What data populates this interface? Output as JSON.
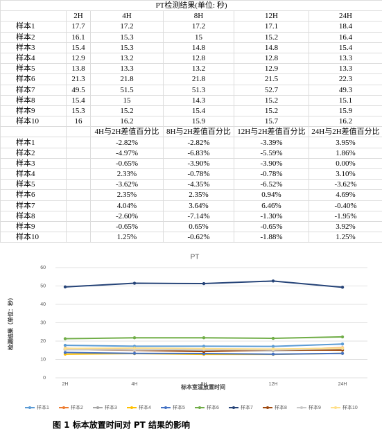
{
  "table": {
    "title": "PT检测结果(单位: 秒)",
    "header": [
      "2H",
      "4H",
      "8H",
      "12H",
      "24H"
    ],
    "rows": [
      {
        "label": "样本1",
        "values": [
          "17.7",
          "17.2",
          "17.2",
          "17.1",
          "18.4"
        ]
      },
      {
        "label": "样本2",
        "values": [
          "16.1",
          "15.3",
          "15",
          "15.2",
          "16.4"
        ]
      },
      {
        "label": "样本3",
        "values": [
          "15.4",
          "15.3",
          "14.8",
          "14.8",
          "15.4"
        ]
      },
      {
        "label": "样本4",
        "values": [
          "12.9",
          "13.2",
          "12.8",
          "12.8",
          "13.3"
        ]
      },
      {
        "label": "样本5",
        "values": [
          "13.8",
          "13.3",
          "13.2",
          "12.9",
          "13.3"
        ]
      },
      {
        "label": "样本6",
        "values": [
          "21.3",
          "21.8",
          "21.8",
          "21.5",
          "22.3"
        ]
      },
      {
        "label": "样本7",
        "values": [
          "49.5",
          "51.5",
          "51.3",
          "52.7",
          "49.3"
        ]
      },
      {
        "label": "样本8",
        "values": [
          "15.4",
          "15",
          "14.3",
          "15.2",
          "15.1"
        ]
      },
      {
        "label": "样本9",
        "values": [
          "15.3",
          "15.2",
          "15.4",
          "15.2",
          "15.9"
        ]
      },
      {
        "label": "样本10",
        "values": [
          "16",
          "16.2",
          "15.9",
          "15.7",
          "16.2"
        ]
      }
    ],
    "header2": [
      "4H与2H差值百分比",
      "8H与2H差值百分比",
      "12H与2H差值百分比",
      "24H与2H差值百分比"
    ],
    "rows2": [
      {
        "label": "样本1",
        "values": [
          "-2.82%",
          "-2.82%",
          "-3.39%",
          "3.95%"
        ]
      },
      {
        "label": "样本2",
        "values": [
          "-4.97%",
          "-6.83%",
          "-5.59%",
          "1.86%"
        ]
      },
      {
        "label": "样本3",
        "values": [
          "-0.65%",
          "-3.90%",
          "-3.90%",
          "0.00%"
        ]
      },
      {
        "label": "样本4",
        "values": [
          "2.33%",
          "-0.78%",
          "-0.78%",
          "3.10%"
        ]
      },
      {
        "label": "样本5",
        "values": [
          "-3.62%",
          "-4.35%",
          "-6.52%",
          "-3.62%"
        ]
      },
      {
        "label": "样本6",
        "values": [
          "2.35%",
          "2.35%",
          "0.94%",
          "4.69%"
        ]
      },
      {
        "label": "样本7",
        "values": [
          "4.04%",
          "3.64%",
          "6.46%",
          "-0.40%"
        ]
      },
      {
        "label": "样本8",
        "values": [
          "-2.60%",
          "-7.14%",
          "-1.30%",
          "-1.95%"
        ]
      },
      {
        "label": "样本9",
        "values": [
          "-0.65%",
          "0.65%",
          "-0.65%",
          "3.92%"
        ]
      },
      {
        "label": "样本10",
        "values": [
          "1.25%",
          "-0.62%",
          "-1.88%",
          "1.25%"
        ]
      }
    ]
  },
  "chart_data": {
    "type": "line",
    "title": "PT",
    "x_label": "标本室温放置时间",
    "y_label": "检测结果（单位：秒）",
    "categories": [
      "2H",
      "4H",
      "8H",
      "12H",
      "24H"
    ],
    "ylim": [
      0,
      60
    ],
    "yticks": [
      0,
      10,
      20,
      30,
      40,
      50,
      60
    ],
    "grid": true,
    "legend": "bottom",
    "series": [
      {
        "name": "样本1",
        "color": "#5b9bd5",
        "values": [
          17.7,
          17.2,
          17.2,
          17.1,
          18.4
        ]
      },
      {
        "name": "样本2",
        "color": "#ed7d31",
        "values": [
          16.1,
          15.3,
          15,
          15.2,
          16.4
        ]
      },
      {
        "name": "样本3",
        "color": "#a5a5a5",
        "values": [
          15.4,
          15.3,
          14.8,
          14.8,
          15.4
        ]
      },
      {
        "name": "样本4",
        "color": "#ffc000",
        "values": [
          12.9,
          13.2,
          12.8,
          12.8,
          13.3
        ]
      },
      {
        "name": "样本5",
        "color": "#4472c4",
        "values": [
          13.8,
          13.3,
          13.2,
          12.9,
          13.3
        ]
      },
      {
        "name": "样本6",
        "color": "#70ad47",
        "values": [
          21.3,
          21.8,
          21.8,
          21.5,
          22.3
        ]
      },
      {
        "name": "样本7",
        "color": "#264478",
        "values": [
          49.5,
          51.5,
          51.3,
          52.7,
          49.3
        ]
      },
      {
        "name": "样本8",
        "color": "#9e480e",
        "values": [
          15.4,
          15,
          14.3,
          15.2,
          15.1
        ]
      },
      {
        "name": "样本9",
        "color": "#c9c9c9",
        "values": [
          15.3,
          15.2,
          15.4,
          15.2,
          15.9
        ]
      },
      {
        "name": "样本10",
        "color": "#ffe08a",
        "values": [
          16,
          16.2,
          15.9,
          15.7,
          16.2
        ]
      }
    ]
  },
  "caption": "图 1   标本放置时间对 PT 结果的影响"
}
